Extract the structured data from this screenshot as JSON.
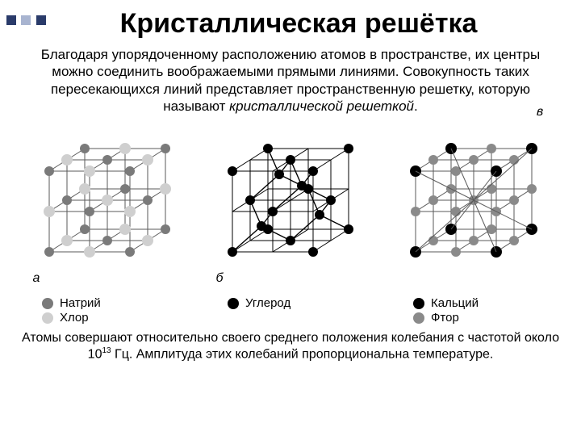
{
  "decor_colors": [
    "#2a3b6a",
    "#a8b4d0",
    "#2a3b6a"
  ],
  "title": "Кристаллическая решётка",
  "intro_a": "Благодаря упорядоченному расположению атомов в пространстве, их центры можно соединить воображаемыми прямыми линиями. Совокупность таких пересекающихся линий представляет пространственную решетку, которую называют ",
  "intro_em": "кристаллической решеткой",
  "intro_dot": ".",
  "labels": {
    "a": "а",
    "b": "б",
    "c": "в"
  },
  "legend": {
    "a": [
      {
        "color": "#7a7a7a",
        "text": "Натрий"
      },
      {
        "color": "#cfcfcf",
        "text": "Хлор"
      }
    ],
    "b": [
      {
        "color": "#000000",
        "text": "Углерод"
      }
    ],
    "c": [
      {
        "color": "#000000",
        "text": "Кальций"
      },
      {
        "color": "#8a8a8a",
        "text": "Фтор"
      }
    ]
  },
  "lattice_style": {
    "stroke": "#5a5a5a",
    "stroke2": "#000000",
    "na": "#7a7a7a",
    "cl": "#cfcfcf",
    "c": "#000000",
    "ca": "#000000",
    "f": "#8a8a8a"
  },
  "outro_a": "Атомы совершают относительно своего среднего положения колебания с частотой около 10",
  "outro_sup": "13",
  "outro_b": " Гц. Амплитуда этих колебаний пропорциональна температуре."
}
